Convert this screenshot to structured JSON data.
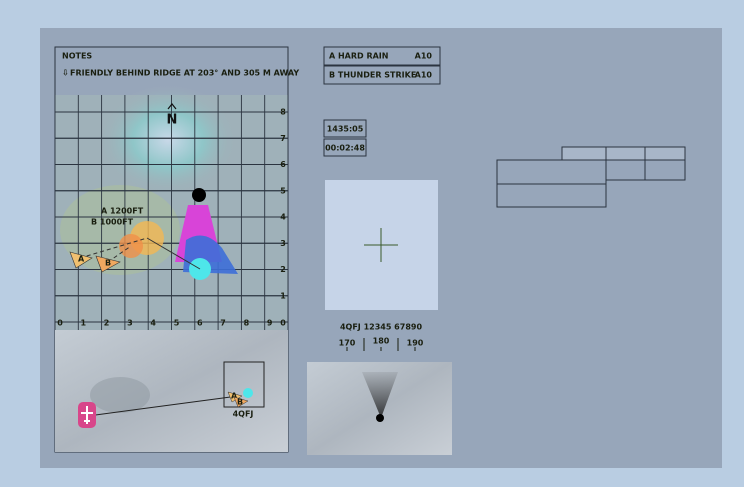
{
  "notes": {
    "title": "NOTES",
    "text": "FRIENDLY BEHIND RIDGE AT 203° AND 305 M AWAY"
  },
  "assets": [
    {
      "name": "A HARD RAIN",
      "type": "A10"
    },
    {
      "name": "B THUNDER STRIKE",
      "type": "A10"
    }
  ],
  "times": {
    "clock": "1435:05",
    "elapsed": "00:02:48"
  },
  "map": {
    "north": "N",
    "x_labels": [
      "0",
      "1",
      "2",
      "3",
      "4",
      "5",
      "6",
      "7",
      "8",
      "9",
      "0"
    ],
    "y_labels": [
      "8",
      "7",
      "6",
      "5",
      "4",
      "3",
      "2",
      "1"
    ],
    "altitude_a": "A 1200FT",
    "altitude_b": "B 1000FT",
    "marker_a": "A",
    "marker_b": "B"
  },
  "minimap": {
    "grid": "4QFJ",
    "marker_a": "A",
    "marker_b": "B"
  },
  "target": {
    "coordinates": "4QFJ 12345 67890",
    "heading_left": "170",
    "heading": "180",
    "heading_right": "190"
  }
}
